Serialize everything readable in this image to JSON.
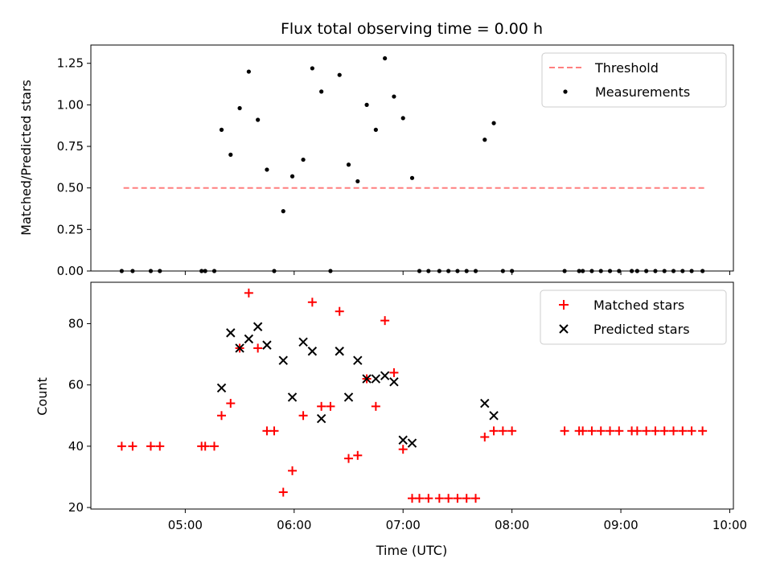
{
  "chart_data": [
    {
      "type": "scatter",
      "title": "Flux total observing time = 0.00 h",
      "xlabel": "",
      "ylabel": "Matched/Predicted stars",
      "xlim": [
        "04:08",
        "10:02"
      ],
      "ylim": [
        0,
        1.36
      ],
      "yticks": [
        "0.00",
        "0.25",
        "0.50",
        "0.75",
        "1.00",
        "1.25"
      ],
      "ytick_values": [
        0,
        0.25,
        0.5,
        0.75,
        1.0,
        1.25
      ],
      "legend_position": "top-right",
      "threshold": {
        "name": "Threshold",
        "value": 0.5,
        "x_range": [
          "04:26",
          "09:47"
        ],
        "color": "#ff7f7f",
        "style": "dashed"
      },
      "series": [
        {
          "name": "Measurements",
          "color": "#000000",
          "points": [
            [
              "04:25",
              0
            ],
            [
              "04:31",
              0
            ],
            [
              "04:41",
              0
            ],
            [
              "04:46",
              0
            ],
            [
              "05:09",
              0
            ],
            [
              "05:11",
              0
            ],
            [
              "05:16",
              0
            ],
            [
              "05:20",
              0.85
            ],
            [
              "05:25",
              0.7
            ],
            [
              "05:30",
              0.98
            ],
            [
              "05:35",
              1.2
            ],
            [
              "05:40",
              0.91
            ],
            [
              "05:45",
              0.61
            ],
            [
              "05:49",
              0
            ],
            [
              "05:54",
              0.36
            ],
            [
              "05:59",
              0.57
            ],
            [
              "06:05",
              0.67
            ],
            [
              "06:10",
              1.22
            ],
            [
              "06:15",
              1.08
            ],
            [
              "06:20",
              0
            ],
            [
              "06:25",
              1.18
            ],
            [
              "06:30",
              0.64
            ],
            [
              "06:35",
              0.54
            ],
            [
              "06:40",
              1.0
            ],
            [
              "06:45",
              0.85
            ],
            [
              "06:50",
              1.28
            ],
            [
              "06:55",
              1.05
            ],
            [
              "07:00",
              0.92
            ],
            [
              "07:05",
              0.56
            ],
            [
              "07:09",
              0
            ],
            [
              "07:14",
              0
            ],
            [
              "07:20",
              0
            ],
            [
              "07:25",
              0
            ],
            [
              "07:30",
              0
            ],
            [
              "07:35",
              0
            ],
            [
              "07:40",
              0
            ],
            [
              "07:45",
              0.79
            ],
            [
              "07:50",
              0.89
            ],
            [
              "07:55",
              0
            ],
            [
              "08:00",
              0
            ],
            [
              "08:29",
              0
            ],
            [
              "08:37",
              0
            ],
            [
              "08:39",
              0
            ],
            [
              "08:44",
              0
            ],
            [
              "08:49",
              0
            ],
            [
              "08:54",
              0
            ],
            [
              "08:59",
              0
            ],
            [
              "09:06",
              0
            ],
            [
              "09:09",
              0
            ],
            [
              "09:14",
              0
            ],
            [
              "09:19",
              0
            ],
            [
              "09:24",
              0
            ],
            [
              "09:29",
              0
            ],
            [
              "09:34",
              0
            ],
            [
              "09:39",
              0
            ],
            [
              "09:45",
              0
            ]
          ]
        }
      ]
    },
    {
      "type": "scatter",
      "title": "",
      "xlabel": "Time (UTC)",
      "ylabel": "Count",
      "xlim": [
        "04:08",
        "10:02"
      ],
      "ylim": [
        19.5,
        93.5
      ],
      "yticks": [
        "20",
        "40",
        "60",
        "80"
      ],
      "ytick_values": [
        20,
        40,
        60,
        80
      ],
      "xticks": [
        "05:00",
        "06:00",
        "07:00",
        "08:00",
        "09:00",
        "10:00"
      ],
      "legend_position": "top-right",
      "series": [
        {
          "name": "Matched stars",
          "color": "#ff0000",
          "marker": "+",
          "points": [
            [
              "04:25",
              40
            ],
            [
              "04:31",
              40
            ],
            [
              "04:41",
              40
            ],
            [
              "04:46",
              40
            ],
            [
              "05:09",
              40
            ],
            [
              "05:11",
              40
            ],
            [
              "05:16",
              40
            ],
            [
              "05:20",
              50
            ],
            [
              "05:25",
              54
            ],
            [
              "05:30",
              72
            ],
            [
              "05:35",
              90
            ],
            [
              "05:40",
              72
            ],
            [
              "05:45",
              45
            ],
            [
              "05:49",
              45
            ],
            [
              "05:54",
              25
            ],
            [
              "05:59",
              32
            ],
            [
              "06:05",
              50
            ],
            [
              "06:10",
              87
            ],
            [
              "06:15",
              53
            ],
            [
              "06:20",
              53
            ],
            [
              "06:25",
              84
            ],
            [
              "06:30",
              36
            ],
            [
              "06:35",
              37
            ],
            [
              "06:40",
              62
            ],
            [
              "06:45",
              53
            ],
            [
              "06:50",
              81
            ],
            [
              "06:55",
              64
            ],
            [
              "07:00",
              39
            ],
            [
              "07:05",
              23
            ],
            [
              "07:09",
              23
            ],
            [
              "07:14",
              23
            ],
            [
              "07:20",
              23
            ],
            [
              "07:25",
              23
            ],
            [
              "07:30",
              23
            ],
            [
              "07:35",
              23
            ],
            [
              "07:40",
              23
            ],
            [
              "07:45",
              43
            ],
            [
              "07:50",
              45
            ],
            [
              "07:55",
              45
            ],
            [
              "08:00",
              45
            ],
            [
              "08:29",
              45
            ],
            [
              "08:37",
              45
            ],
            [
              "08:39",
              45
            ],
            [
              "08:44",
              45
            ],
            [
              "08:49",
              45
            ],
            [
              "08:54",
              45
            ],
            [
              "08:59",
              45
            ],
            [
              "09:06",
              45
            ],
            [
              "09:09",
              45
            ],
            [
              "09:14",
              45
            ],
            [
              "09:19",
              45
            ],
            [
              "09:24",
              45
            ],
            [
              "09:29",
              45
            ],
            [
              "09:34",
              45
            ],
            [
              "09:39",
              45
            ],
            [
              "09:45",
              45
            ]
          ]
        },
        {
          "name": "Predicted stars",
          "color": "#000000",
          "marker": "x",
          "points": [
            [
              "05:20",
              59
            ],
            [
              "05:25",
              77
            ],
            [
              "05:30",
              72
            ],
            [
              "05:35",
              75
            ],
            [
              "05:40",
              79
            ],
            [
              "05:45",
              73
            ],
            [
              "05:54",
              68
            ],
            [
              "05:59",
              56
            ],
            [
              "06:05",
              74
            ],
            [
              "06:10",
              71
            ],
            [
              "06:15",
              49
            ],
            [
              "06:25",
              71
            ],
            [
              "06:30",
              56
            ],
            [
              "06:35",
              68
            ],
            [
              "06:40",
              62
            ],
            [
              "06:45",
              62
            ],
            [
              "06:50",
              63
            ],
            [
              "06:55",
              61
            ],
            [
              "07:00",
              42
            ],
            [
              "07:05",
              41
            ],
            [
              "07:45",
              54
            ],
            [
              "07:50",
              50
            ]
          ]
        }
      ]
    }
  ]
}
